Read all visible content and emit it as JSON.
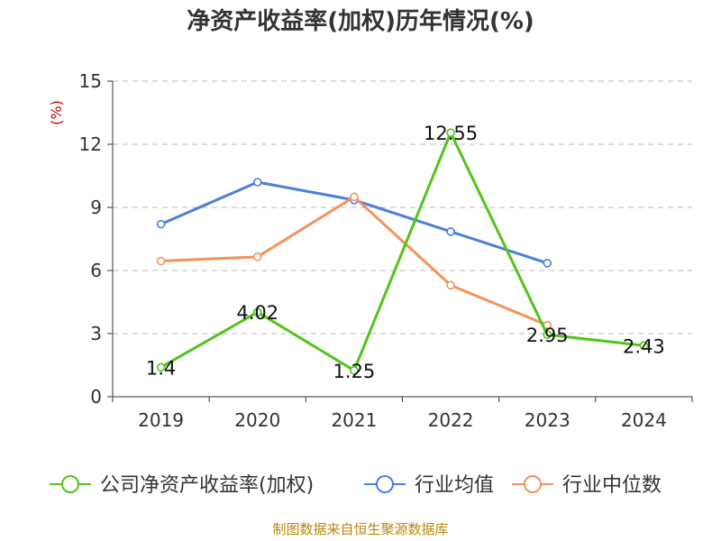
{
  "chart_data": {
    "type": "line",
    "title": "净资产收益率(加权)历年情况(%)",
    "ylabel": "(%)",
    "xlabel": "",
    "ylim": [
      0,
      15
    ],
    "yticks": [
      0,
      3,
      6,
      9,
      12,
      15
    ],
    "categories": [
      "2019",
      "2020",
      "2021",
      "2022",
      "2023",
      "2024"
    ],
    "grid": true,
    "legend_position": "bottom",
    "series": [
      {
        "name": "公司净资产收益率(加权)",
        "color": "#52c41a",
        "values": [
          1.4,
          4.02,
          1.25,
          12.55,
          2.95,
          2.43
        ],
        "labels": [
          "1.4",
          "4.02",
          "1.25",
          "12.55",
          "2.95",
          "2.43"
        ]
      },
      {
        "name": "行业均值",
        "color": "#4a7fdb",
        "values": [
          8.2,
          10.2,
          9.35,
          7.85,
          6.35,
          null
        ]
      },
      {
        "name": "行业中位数",
        "color": "#f5925b",
        "values": [
          6.45,
          6.65,
          9.5,
          5.3,
          3.4,
          null
        ]
      }
    ],
    "source": "制图数据来自恒生聚源数据库"
  }
}
